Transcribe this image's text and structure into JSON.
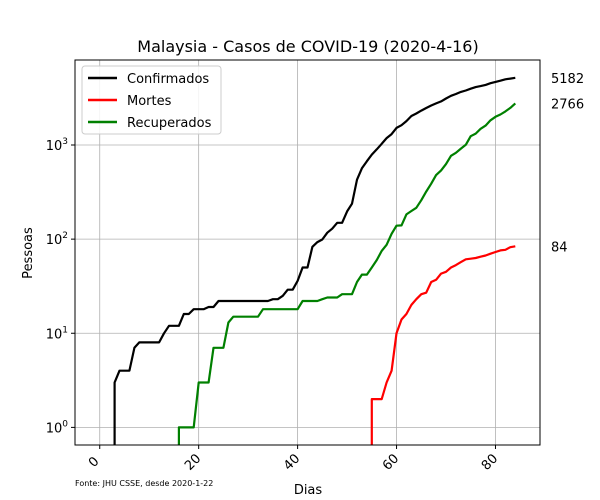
{
  "chart_data": {
    "type": "line",
    "title": "Malaysia - Casos de COVID-19 (2020-4-16)",
    "xlabel": "Dias",
    "ylabel": "Pessoas",
    "source": "Fonte: JHU CSSE, desde 2020-1-22",
    "xlim": [
      -5,
      89
    ],
    "ylim": [
      0.65,
      8000
    ],
    "yscale": "log",
    "x_ticks": [
      0,
      20,
      40,
      60,
      80
    ],
    "y_ticks": [
      {
        "value": 1,
        "base": "10",
        "exp": "0"
      },
      {
        "value": 10,
        "base": "10",
        "exp": "1"
      },
      {
        "value": 100,
        "base": "10",
        "exp": "2"
      },
      {
        "value": 1000,
        "base": "10",
        "exp": "3"
      }
    ],
    "grid": true,
    "legend_position": "top-left",
    "series": [
      {
        "name": "Confirmados",
        "color": "#000000",
        "end_label": "5182",
        "points": [
          [
            3,
            0.55
          ],
          [
            3,
            3
          ],
          [
            4,
            4
          ],
          [
            5,
            4
          ],
          [
            6,
            4
          ],
          [
            7,
            7
          ],
          [
            8,
            8
          ],
          [
            9,
            8
          ],
          [
            10,
            8
          ],
          [
            11,
            8
          ],
          [
            12,
            8
          ],
          [
            13,
            10
          ],
          [
            14,
            12
          ],
          [
            15,
            12
          ],
          [
            16,
            12
          ],
          [
            17,
            16
          ],
          [
            18,
            16
          ],
          [
            19,
            18
          ],
          [
            20,
            18
          ],
          [
            21,
            18
          ],
          [
            22,
            19
          ],
          [
            23,
            19
          ],
          [
            24,
            22
          ],
          [
            25,
            22
          ],
          [
            26,
            22
          ],
          [
            27,
            22
          ],
          [
            28,
            22
          ],
          [
            29,
            22
          ],
          [
            30,
            22
          ],
          [
            31,
            22
          ],
          [
            32,
            22
          ],
          [
            33,
            22
          ],
          [
            34,
            22
          ],
          [
            35,
            23
          ],
          [
            36,
            23
          ],
          [
            37,
            25
          ],
          [
            38,
            29
          ],
          [
            39,
            29
          ],
          [
            40,
            36
          ],
          [
            41,
            50
          ],
          [
            42,
            50
          ],
          [
            43,
            83
          ],
          [
            44,
            93
          ],
          [
            45,
            99
          ],
          [
            46,
            117
          ],
          [
            47,
            129
          ],
          [
            48,
            149
          ],
          [
            49,
            149
          ],
          [
            50,
            197
          ],
          [
            51,
            238
          ],
          [
            52,
            428
          ],
          [
            53,
            566
          ],
          [
            54,
            673
          ],
          [
            55,
            790
          ],
          [
            56,
            900
          ],
          [
            57,
            1030
          ],
          [
            58,
            1183
          ],
          [
            59,
            1306
          ],
          [
            60,
            1518
          ],
          [
            61,
            1624
          ],
          [
            62,
            1796
          ],
          [
            63,
            2031
          ],
          [
            64,
            2161
          ],
          [
            65,
            2320
          ],
          [
            66,
            2470
          ],
          [
            67,
            2626
          ],
          [
            68,
            2766
          ],
          [
            69,
            2908
          ],
          [
            70,
            3116
          ],
          [
            71,
            3333
          ],
          [
            72,
            3483
          ],
          [
            73,
            3662
          ],
          [
            74,
            3793
          ],
          [
            75,
            3963
          ],
          [
            76,
            4119
          ],
          [
            77,
            4228
          ],
          [
            78,
            4346
          ],
          [
            79,
            4530
          ],
          [
            80,
            4683
          ],
          [
            81,
            4817
          ],
          [
            82,
            4987
          ],
          [
            83,
            5072
          ],
          [
            84,
            5182
          ]
        ]
      },
      {
        "name": "Mortes",
        "color": "#ff0000",
        "end_label": "84",
        "points": [
          [
            55,
            0.55
          ],
          [
            55,
            2
          ],
          [
            56,
            2
          ],
          [
            57,
            2
          ],
          [
            58,
            3
          ],
          [
            59,
            4
          ],
          [
            60,
            10
          ],
          [
            61,
            14
          ],
          [
            62,
            16
          ],
          [
            63,
            20
          ],
          [
            64,
            23
          ],
          [
            65,
            26
          ],
          [
            66,
            27
          ],
          [
            67,
            35
          ],
          [
            68,
            37
          ],
          [
            69,
            43
          ],
          [
            70,
            45
          ],
          [
            71,
            50
          ],
          [
            72,
            53
          ],
          [
            73,
            57
          ],
          [
            74,
            61
          ],
          [
            75,
            62
          ],
          [
            76,
            63
          ],
          [
            77,
            65
          ],
          [
            78,
            67
          ],
          [
            79,
            70
          ],
          [
            80,
            73
          ],
          [
            81,
            76
          ],
          [
            82,
            77
          ],
          [
            83,
            82
          ],
          [
            84,
            84
          ]
        ]
      },
      {
        "name": "Recuperados",
        "color": "#008000",
        "end_label": "2766",
        "points": [
          [
            16,
            0.55
          ],
          [
            16,
            1
          ],
          [
            17,
            1
          ],
          [
            18,
            1
          ],
          [
            19,
            1
          ],
          [
            20,
            3
          ],
          [
            21,
            3
          ],
          [
            22,
            3
          ],
          [
            23,
            7
          ],
          [
            24,
            7
          ],
          [
            25,
            7
          ],
          [
            26,
            13
          ],
          [
            27,
            15
          ],
          [
            28,
            15
          ],
          [
            29,
            15
          ],
          [
            30,
            15
          ],
          [
            31,
            15
          ],
          [
            32,
            15
          ],
          [
            33,
            18
          ],
          [
            34,
            18
          ],
          [
            35,
            18
          ],
          [
            36,
            18
          ],
          [
            37,
            18
          ],
          [
            38,
            18
          ],
          [
            39,
            18
          ],
          [
            40,
            18
          ],
          [
            41,
            22
          ],
          [
            42,
            22
          ],
          [
            43,
            22
          ],
          [
            44,
            22
          ],
          [
            45,
            23
          ],
          [
            46,
            24
          ],
          [
            47,
            24
          ],
          [
            48,
            24
          ],
          [
            49,
            26
          ],
          [
            50,
            26
          ],
          [
            51,
            26
          ],
          [
            52,
            35
          ],
          [
            53,
            42
          ],
          [
            54,
            42
          ],
          [
            55,
            50
          ],
          [
            56,
            60
          ],
          [
            57,
            75
          ],
          [
            58,
            87
          ],
          [
            59,
            114
          ],
          [
            60,
            139
          ],
          [
            61,
            140
          ],
          [
            62,
            183
          ],
          [
            63,
            199
          ],
          [
            64,
            215
          ],
          [
            65,
            259
          ],
          [
            66,
            320
          ],
          [
            67,
            388
          ],
          [
            68,
            479
          ],
          [
            69,
            537
          ],
          [
            70,
            627
          ],
          [
            71,
            767
          ],
          [
            72,
            826
          ],
          [
            73,
            915
          ],
          [
            74,
            1005
          ],
          [
            75,
            1241
          ],
          [
            76,
            1322
          ],
          [
            77,
            1487
          ],
          [
            78,
            1608
          ],
          [
            79,
            1830
          ],
          [
            80,
            1995
          ],
          [
            81,
            2108
          ],
          [
            82,
            2276
          ],
          [
            83,
            2478
          ],
          [
            84,
            2766
          ]
        ]
      }
    ]
  }
}
